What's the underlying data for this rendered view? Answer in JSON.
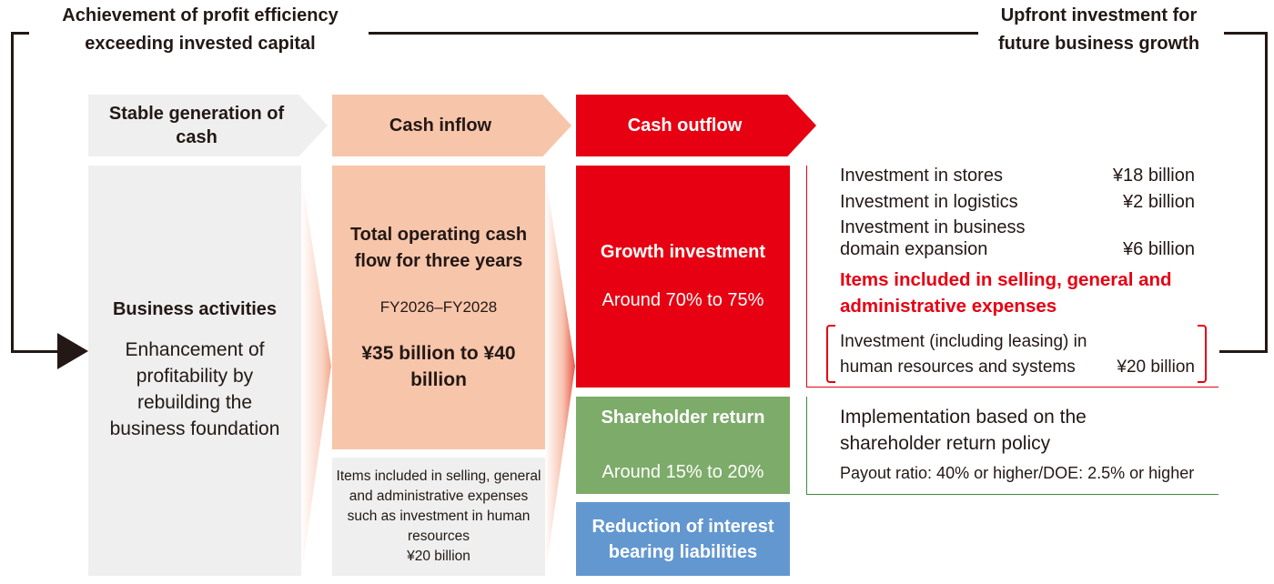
{
  "top": {
    "left_label": "Achievement of profit efficiency exceeding invested capital",
    "right_label": "Upfront investment for future business growth"
  },
  "headers": {
    "col1": "Stable generation of cash",
    "col2": "Cash inflow",
    "col3": "Cash outflow"
  },
  "business": {
    "title": "Business activities",
    "text": "Enhancement of profitability by rebuilding the business foundation"
  },
  "inflow": {
    "title": "Total operating cash flow for three years",
    "period": "FY2026–FY2028",
    "amount": "¥35 billion to ¥40 billion",
    "note": "Items included in selling, general and administrative expenses such as investment in human resources",
    "note_amount": "¥20 billion"
  },
  "outflow": {
    "growth": {
      "title": "Growth investment",
      "share": "Around 70% to 75%"
    },
    "shareholder": {
      "title": "Shareholder return",
      "share": "Around 15% to 20%"
    },
    "debt": {
      "title": "Reduction of interest bearing liabilities"
    }
  },
  "growth_details": {
    "items": [
      {
        "label": "Investment in stores",
        "amount": "¥18 billion"
      },
      {
        "label": "Investment in logistics",
        "amount": "¥2 billion"
      },
      {
        "label": "Investment in business domain expansion",
        "amount": "¥6 billion"
      }
    ],
    "sga_heading": "Items included in selling, general and administrative expenses",
    "sga_item": "Investment (including leasing) in human resources and systems",
    "sga_amount": "¥20 billion"
  },
  "shareholder_details": {
    "text": "Implementation based on the shareholder return policy",
    "policy": "Payout ratio: 40% or higher/DOE: 2.5% or higher"
  },
  "colors": {
    "gray": "#eeefee",
    "peach": "#f7c5aa",
    "red": "#e60012",
    "green": "#7dab6a",
    "blue": "#6397d0",
    "dark": "#231815"
  }
}
